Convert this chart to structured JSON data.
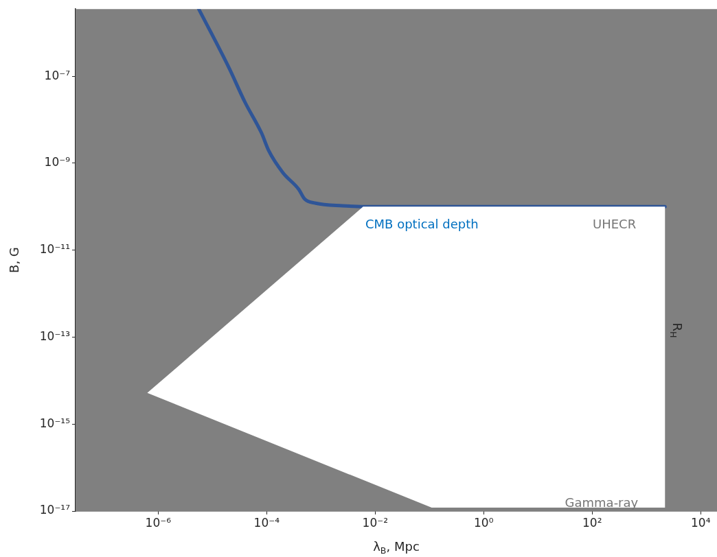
{
  "chart_data": {
    "type": "line",
    "xlabel": "λ$_{B}$, Mpc",
    "ylabel": "B, G",
    "log": "xy",
    "grid": false,
    "legend": false,
    "marker": "none",
    "xlim": [
      3e-08,
      20000.0
    ],
    "ylim": [
      1e-17,
      3.5e-06
    ],
    "xticks": [
      {
        "value": 1e-06,
        "label": "10⁻⁶"
      },
      {
        "value": 0.0001,
        "label": "10⁻⁴"
      },
      {
        "value": 0.01,
        "label": "10⁻²"
      },
      {
        "value": 1,
        "label": "10⁰"
      },
      {
        "value": 100,
        "label": "10²"
      },
      {
        "value": 10000,
        "label": "10⁴"
      }
    ],
    "yticks": [
      {
        "value": 1e-17,
        "label": "10⁻¹⁷"
      },
      {
        "value": 1e-15,
        "label": "10⁻¹⁵"
      },
      {
        "value": 1e-13,
        "label": "10⁻¹³"
      },
      {
        "value": 1e-11,
        "label": "10⁻¹¹"
      },
      {
        "value": 1e-09,
        "label": "10⁻⁹"
      },
      {
        "value": 1e-07,
        "label": "10⁻⁷"
      }
    ],
    "series": [
      {
        "type": "area",
        "color": "#ffffff",
        "x": [
          0.006,
          2200.0,
          2200.0,
          0.11,
          6.3e-07,
          0.006
        ],
        "values": [
          1e-10,
          1e-10,
          1.2e-17,
          1.2e-17,
          5.2e-15,
          1e-10
        ]
      },
      {
        "type": "line",
        "color": "#2f5597",
        "line_style": "solid",
        "x": [
          5.6e-06,
          2e-05,
          4e-05,
          8e-05,
          0.00011,
          0.0002,
          0.00039,
          0.0005,
          0.0008,
          0.0025,
          0.01,
          2200.0
        ],
        "values": [
          3.5e-06,
          1.6e-07,
          2.5e-08,
          5e-09,
          1.9e-09,
          6e-10,
          2.5e-10,
          1.5e-10,
          1.2e-10,
          1.05e-10,
          1e-10,
          1e-10
        ]
      }
    ],
    "bands": [
      {
        "axis": "x",
        "from": 3e-08,
        "to": 20000.0,
        "color": "#808080"
      }
    ],
    "annotations": [
      "CMB optical depth",
      "UHECR",
      "Gamma-ray",
      "R$_{H}$"
    ]
  }
}
